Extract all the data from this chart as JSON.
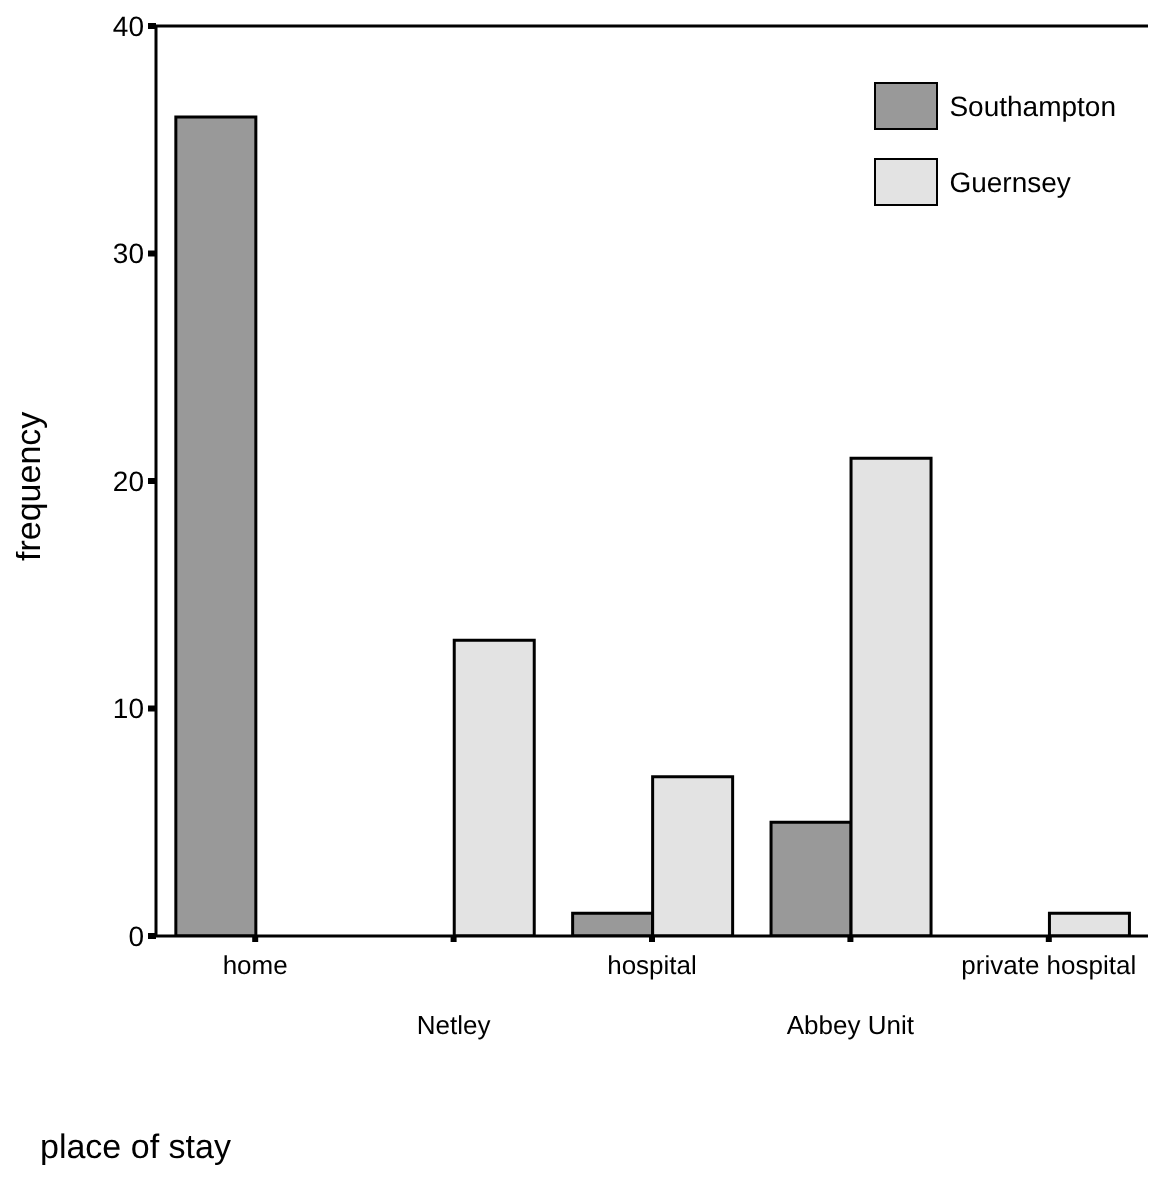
{
  "chart_data": {
    "type": "bar",
    "xlabel": "place of stay",
    "ylabel": "frequency",
    "categories": [
      "home",
      "Netley",
      "hospital",
      "Abbey Unit",
      "private hospital"
    ],
    "series": [
      {
        "name": "Southampton",
        "color": "#999999",
        "values": [
          36,
          null,
          1,
          5,
          null
        ]
      },
      {
        "name": "Guernsey",
        "color": "#e3e3e3",
        "values": [
          null,
          13,
          7,
          21,
          1
        ]
      }
    ],
    "ylim": [
      0,
      40
    ],
    "yticks": [
      0,
      10,
      20,
      30,
      40
    ],
    "grid": false,
    "legend": "top right"
  }
}
